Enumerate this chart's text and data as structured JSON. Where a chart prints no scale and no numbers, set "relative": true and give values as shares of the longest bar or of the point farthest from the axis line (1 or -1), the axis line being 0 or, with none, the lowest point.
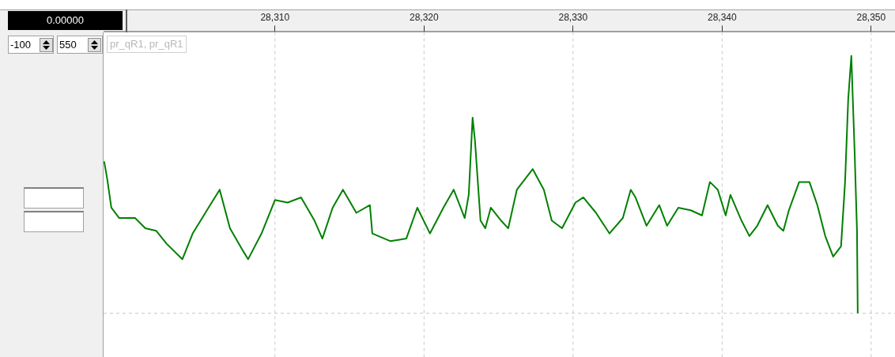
{
  "chart_data": {
    "type": "line",
    "relative": true,
    "tick_labels": "x",
    "grid": "x",
    "xlim": [
      28298.5,
      28351.6
    ],
    "xticks": [
      {
        "value": 28310,
        "label": "28,310"
      },
      {
        "value": 28320,
        "label": "28,320"
      },
      {
        "value": 28330,
        "label": "28,330"
      },
      {
        "value": 28340,
        "label": "28,340"
      },
      {
        "value": 28350,
        "label": "28,350"
      }
    ],
    "x": [
      28298.54,
      28298.75,
      28299.02,
      28299.55,
      28300.61,
      28301.3,
      28302.04,
      28302.73,
      28303.79,
      28304.48,
      28305.54,
      28306.29,
      28306.98,
      28307.88,
      28308.2,
      28309.1,
      28310,
      28310.85,
      28311.75,
      28312.65,
      28313.18,
      28313.87,
      28314.56,
      28315.46,
      28316.37,
      28316.53,
      28317.75,
      28318.81,
      28319.55,
      28320.4,
      28321.3,
      28321.99,
      28322.73,
      28323,
      28323.26,
      28323.42,
      28323.79,
      28324.11,
      28324.48,
      28325.17,
      28325.65,
      28326.23,
      28327.29,
      28328.04,
      28328.57,
      28329.26,
      28330.16,
      28330.69,
      28331.54,
      28332.44,
      28333.34,
      28333.87,
      28334.19,
      28334.93,
      28335.78,
      28336.31,
      28337.06,
      28337.9,
      28338.65,
      28339.18,
      28339.71,
      28340.24,
      28340.56,
      28341.3,
      28341.83,
      28342.36,
      28343.05,
      28343.74,
      28344.11,
      28344.48,
      28345.17,
      28345.86,
      28346.39,
      28346.92,
      28347.45,
      28347.98,
      28348.25,
      28348.46,
      28348.67,
      28348.89,
      28349.05,
      28349.1
    ],
    "series": [
      {
        "color": "#008000",
        "values": [
          0.59,
          0.52,
          0.41,
          0.37,
          0.37,
          0.33,
          0.32,
          0.27,
          0.21,
          0.31,
          0.41,
          0.48,
          0.33,
          0.24,
          0.21,
          0.31,
          0.44,
          0.43,
          0.45,
          0.36,
          0.29,
          0.41,
          0.48,
          0.39,
          0.42,
          0.31,
          0.28,
          0.29,
          0.41,
          0.31,
          0.41,
          0.48,
          0.37,
          0.46,
          0.76,
          0.67,
          0.36,
          0.33,
          0.41,
          0.36,
          0.33,
          0.48,
          0.56,
          0.48,
          0.36,
          0.33,
          0.43,
          0.45,
          0.39,
          0.31,
          0.37,
          0.48,
          0.45,
          0.34,
          0.42,
          0.34,
          0.41,
          0.4,
          0.38,
          0.51,
          0.48,
          0.38,
          0.46,
          0.36,
          0.3,
          0.34,
          0.42,
          0.34,
          0.32,
          0.4,
          0.51,
          0.51,
          0.42,
          0.3,
          0.22,
          0.26,
          0.51,
          0.83,
          1,
          0.63,
          0.32,
          0
        ]
      }
    ],
    "annotations": [
      "0.00000",
      "-100",
      "550",
      "pr_qR1, pr_qR1"
    ]
  }
}
